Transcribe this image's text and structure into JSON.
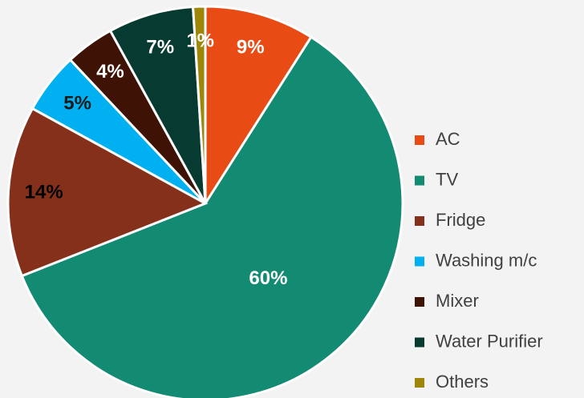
{
  "chart_data": {
    "type": "pie",
    "categories": [
      "AC",
      "TV",
      "Fridge",
      "Washing m/c",
      "Mixer",
      "Water Purifier",
      "Others"
    ],
    "values": [
      9,
      60,
      14,
      5,
      4,
      7,
      1
    ],
    "value_labels": [
      "9%",
      "60%",
      "14%",
      "5%",
      "4%",
      "7%",
      "1%"
    ],
    "colors": [
      "#e84c14",
      "#138a72",
      "#84301a",
      "#00b0f0",
      "#3e1205",
      "#073b31",
      "#9e8608"
    ],
    "label_colors": [
      "#ffffff",
      "#ffffff",
      "#000000",
      "#1a1a1a",
      "#ffffff",
      "#ffffff",
      "#ffffff"
    ],
    "legend": "right"
  }
}
